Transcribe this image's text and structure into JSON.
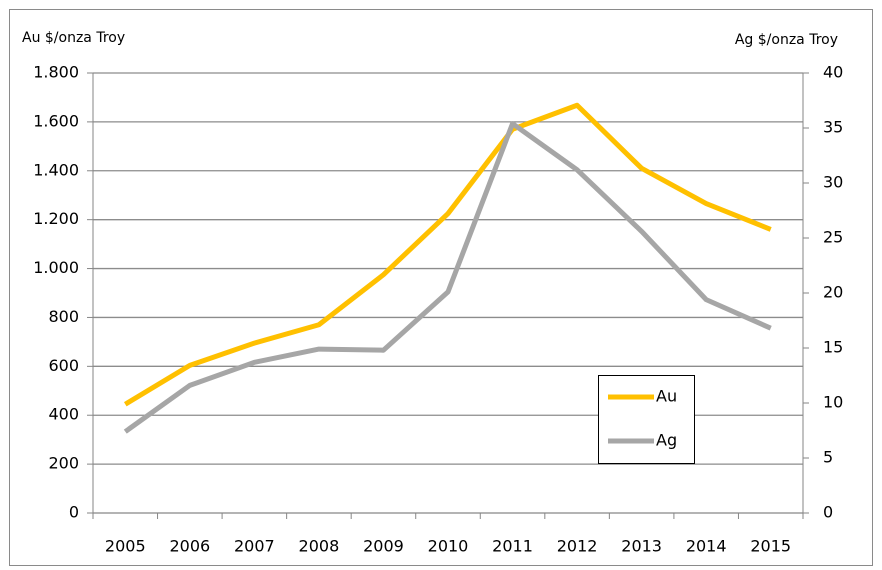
{
  "chart_data": {
    "type": "line",
    "y_label": "Au $/onza Troy",
    "y2_label": "Ag $/onza Troy",
    "categories": [
      "2005",
      "2006",
      "2007",
      "2008",
      "2009",
      "2010",
      "2011",
      "2012",
      "2013",
      "2014",
      "2015"
    ],
    "series": [
      {
        "name": "Au",
        "color": "#ffc000",
        "values": [
          445,
          604,
          695,
          770,
          975,
          1225,
          1570,
          1668,
          1410,
          1266,
          1160
        ]
      },
      {
        "name": "Ag",
        "color": "#a6a6a6",
        "axis": "y2",
        "values": [
          7.4,
          11.6,
          13.7,
          14.9,
          14.8,
          20.1,
          35.4,
          31.2,
          25.6,
          19.4,
          16.8
        ]
      }
    ],
    "ylim": [
      0,
      1800
    ],
    "yticks": [
      0,
      200,
      400,
      600,
      800,
      {
        "value": 1000,
        "label": "1.000"
      },
      {
        "value": 1200,
        "label": "1.200"
      },
      {
        "value": 1400,
        "label": "1.400"
      },
      {
        "value": 1600,
        "label": "1.600"
      },
      {
        "value": 1800,
        "label": "1.800"
      }
    ],
    "y2lim": [
      0,
      40
    ],
    "y2ticks": [
      0,
      5,
      10,
      15,
      20,
      25,
      30,
      35,
      40
    ],
    "grid": true,
    "legend": "lower right"
  }
}
